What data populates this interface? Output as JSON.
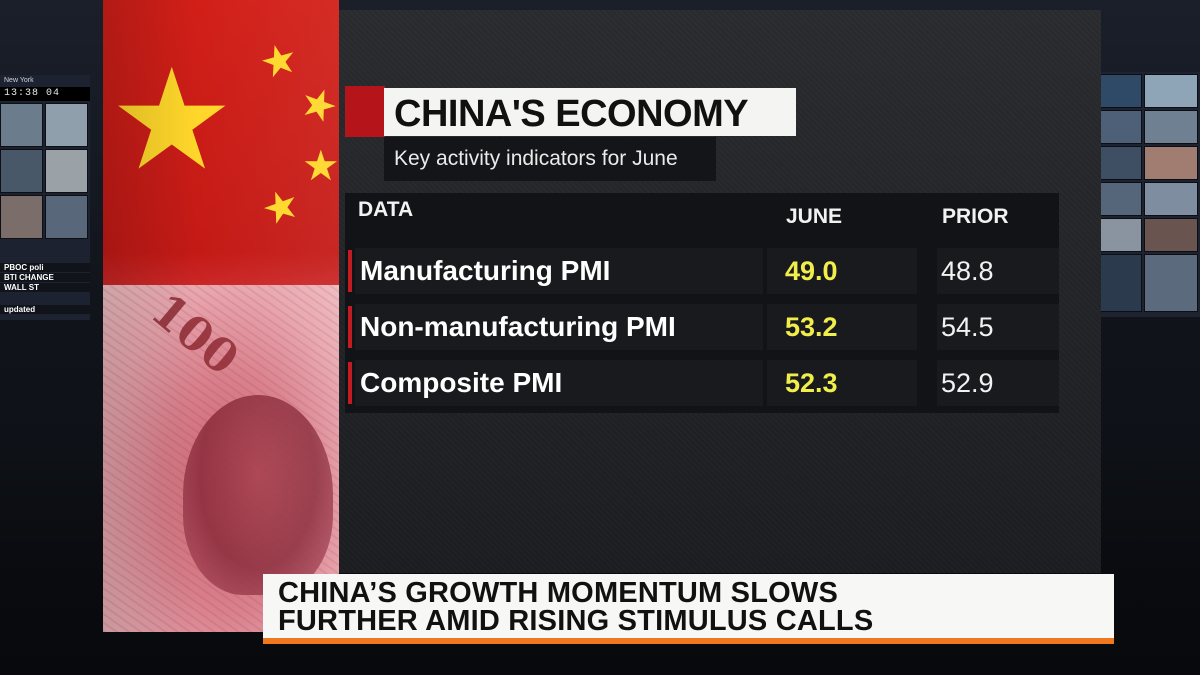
{
  "monitors": {
    "city": "New York",
    "clock": "13:38  04",
    "ticker_lines": [
      "PBOC poli",
      "BTI CHANGE",
      "WALL ST",
      "updated"
    ]
  },
  "graphic": {
    "title": "CHINA'S ECONOMY",
    "subtitle": "Key activity indicators for June",
    "columns": {
      "label": "DATA",
      "current": "JUNE",
      "prior": "PRIOR"
    },
    "rows": [
      {
        "label": "Manufacturing PMI",
        "current": "49.0",
        "prior": "48.8"
      },
      {
        "label": "Non-manufacturing PMI",
        "current": "53.2",
        "prior": "54.5"
      },
      {
        "label": "Composite PMI",
        "current": "52.3",
        "prior": "52.9"
      }
    ]
  },
  "banknote": {
    "denomination": "100"
  },
  "lower_third": {
    "line1": "CHINA’S GROWTH MOMENTUM SLOWS",
    "line2": "FURTHER AMID RISING STIMULUS CALLS"
  },
  "colors": {
    "accent_red": "#b5141a",
    "value_yellow": "#f1ee4b",
    "lower_third_bar": "#f0781e",
    "flag_star": "#ffd72a"
  }
}
